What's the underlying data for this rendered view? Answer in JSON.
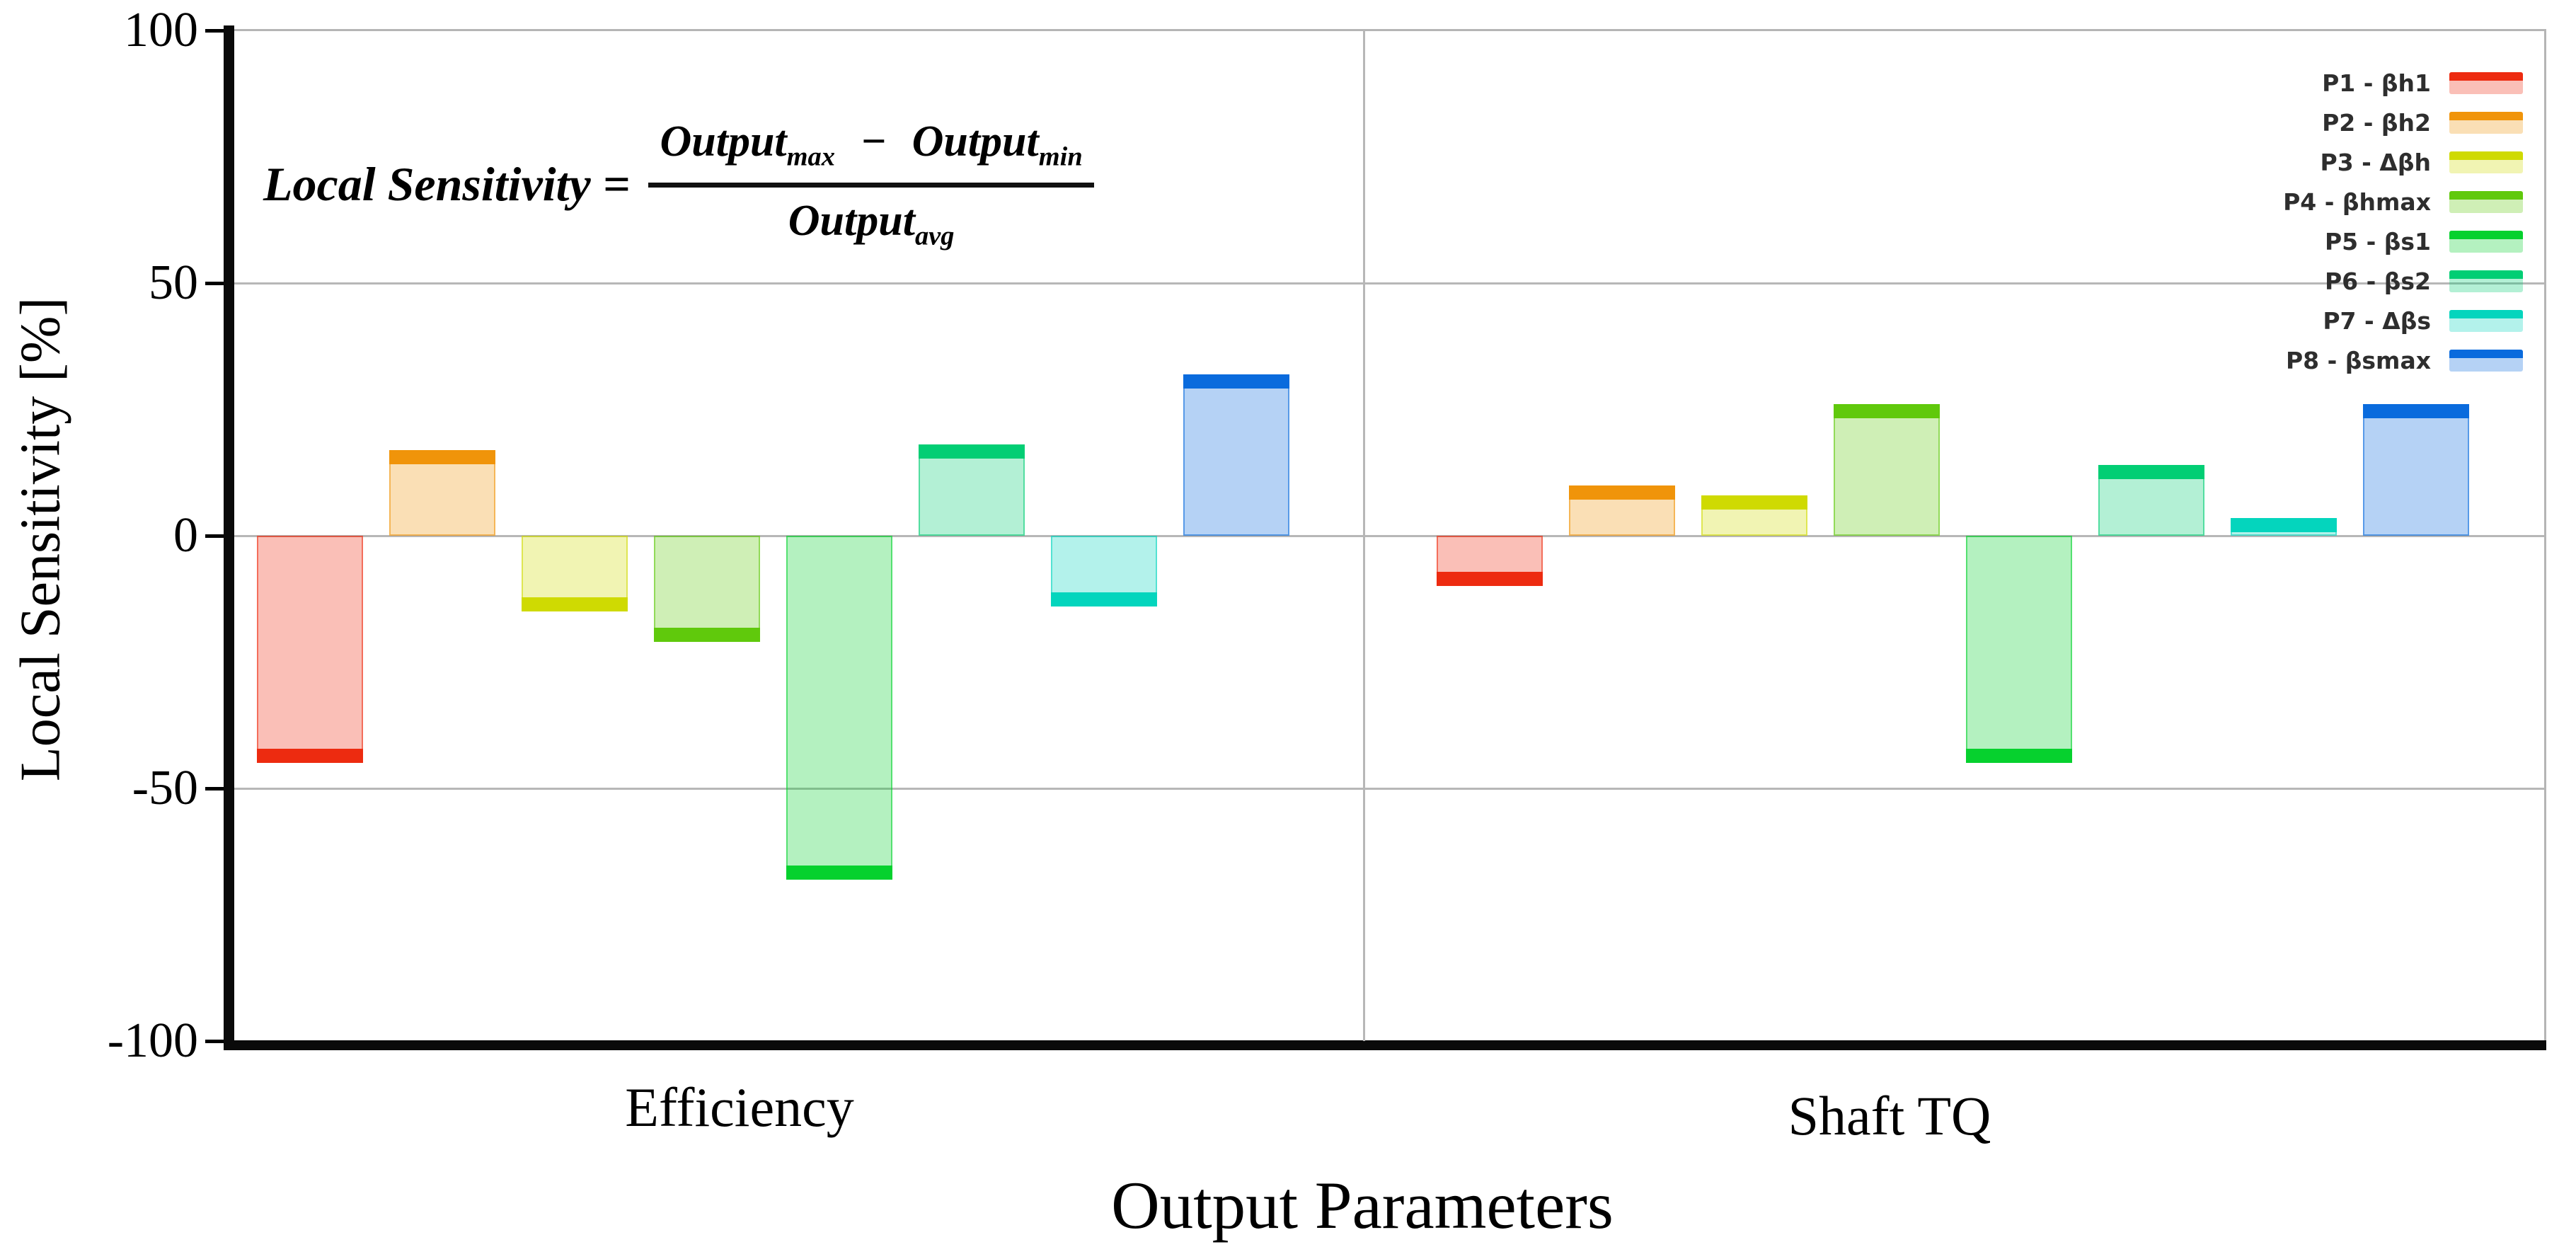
{
  "figure": {
    "formula": {
      "lhs": "Local Sensitivity",
      "eq": "=",
      "num_base_1": "Output",
      "num_sub_1": "max",
      "minus": "−",
      "num_base_2": "Output",
      "num_sub_2": "min",
      "den_base": "Output",
      "den_sub": "avg"
    },
    "grid_color": "#b7b7b7",
    "spine_color": "#0a0a0a"
  },
  "chart_data": {
    "type": "bar",
    "title": "",
    "xlabel": "Output Parameters",
    "ylabel": "Local Sensitivity [%]",
    "categories": [
      "Efficiency",
      "Shaft TQ"
    ],
    "ylim": [
      -100,
      100
    ],
    "yticks": [
      100,
      50,
      0,
      -50,
      -100
    ],
    "grid": true,
    "legend_position": "top-right",
    "series": [
      {
        "name": "P1 - βh1",
        "color": "#ED2B10",
        "values": [
          -45,
          -10
        ]
      },
      {
        "name": "P2 - βh2",
        "color": "#F0940A",
        "values": [
          17,
          10
        ]
      },
      {
        "name": "P3 - Δβh",
        "color": "#CFDA02",
        "values": [
          -15,
          8
        ]
      },
      {
        "name": "P4 - βhmax",
        "color": "#60C90C",
        "values": [
          -21,
          26
        ]
      },
      {
        "name": "P5 - βs1",
        "color": "#06D12E",
        "values": [
          -68,
          -45
        ]
      },
      {
        "name": "P6 - βs2",
        "color": "#02CE74",
        "values": [
          18,
          14
        ]
      },
      {
        "name": "P7 - Δβs",
        "color": "#04D5BD",
        "values": [
          -14,
          3.5
        ]
      },
      {
        "name": "P8 - βsmax",
        "color": "#0A6BDD",
        "values": [
          32,
          26
        ]
      }
    ]
  }
}
